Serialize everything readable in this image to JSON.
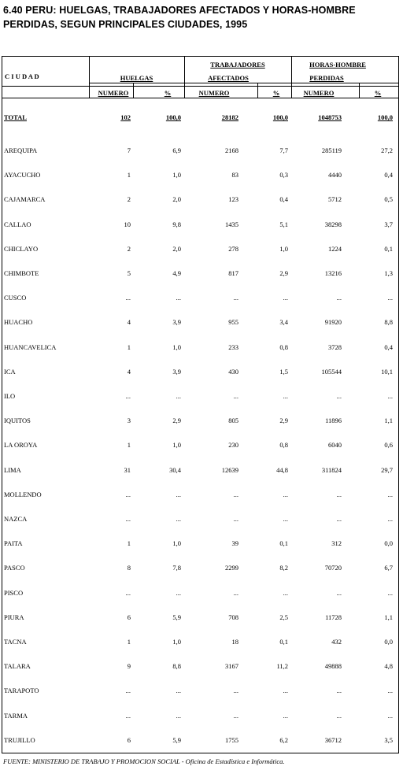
{
  "title": {
    "line1": "6.40  PERU: HUELGAS, TRABAJADORES AFECTADOS Y HORAS-HOMBRE",
    "line2": " PERDIDAS, SEGUN PRINCIPALES CIUDADES, 1995"
  },
  "header": {
    "ciudad": "C I U D A D",
    "huelgas": "HUELGAS",
    "trab1": "TRABAJADORES",
    "trab2": "AFECTADOS",
    "horas1": "HORAS-HOMBRE",
    "horas2": "PERDIDAS",
    "numero": "NUMERO",
    "pct": "%"
  },
  "total": {
    "city": "TOTAL",
    "h": "102",
    "hp": "100,0",
    "t": "28182",
    "tp": "100,0",
    "hh": "1048753",
    "hhp": "100,0"
  },
  "rows": [
    {
      "city": "AREQUIPA",
      "h": "7",
      "hp": "6,9",
      "t": "2168",
      "tp": "7,7",
      "hh": "285119",
      "hhp": "27,2"
    },
    {
      "city": "AYACUCHO",
      "h": "1",
      "hp": "1,0",
      "t": "83",
      "tp": "0,3",
      "hh": "4440",
      "hhp": "0,4"
    },
    {
      "city": "CAJAMARCA",
      "h": "2",
      "hp": "2,0",
      "t": "123",
      "tp": "0,4",
      "hh": "5712",
      "hhp": "0,5"
    },
    {
      "city": "CALLAO",
      "h": "10",
      "hp": "9,8",
      "t": "1435",
      "tp": "5,1",
      "hh": "38298",
      "hhp": "3,7"
    },
    {
      "city": "CHICLAYO",
      "h": "2",
      "hp": "2,0",
      "t": "278",
      "tp": "1,0",
      "hh": "1224",
      "hhp": "0,1"
    },
    {
      "city": "CHIMBOTE",
      "h": "5",
      "hp": "4,9",
      "t": "817",
      "tp": "2,9",
      "hh": "13216",
      "hhp": "1,3"
    },
    {
      "city": "CUSCO",
      "h": "...",
      "hp": "...",
      "t": "...",
      "tp": "...",
      "hh": "...",
      "hhp": "..."
    },
    {
      "city": "HUACHO",
      "h": "4",
      "hp": "3,9",
      "t": "955",
      "tp": "3,4",
      "hh": "91920",
      "hhp": "8,8"
    },
    {
      "city": "HUANCAVELICA",
      "h": "1",
      "hp": "1,0",
      "t": "233",
      "tp": "0,8",
      "hh": "3728",
      "hhp": "0,4"
    },
    {
      "city": "ICA",
      "h": "4",
      "hp": "3,9",
      "t": "430",
      "tp": "1,5",
      "hh": "105544",
      "hhp": "10,1"
    },
    {
      "city": "ILO",
      "h": "...",
      "hp": "...",
      "t": "...",
      "tp": "...",
      "hh": "...",
      "hhp": "..."
    },
    {
      "city": "IQUITOS",
      "h": "3",
      "hp": "2,9",
      "t": "805",
      "tp": "2,9",
      "hh": "11896",
      "hhp": "1,1"
    },
    {
      "city": "LA OROYA",
      "h": "1",
      "hp": "1,0",
      "t": "230",
      "tp": "0,8",
      "hh": "6040",
      "hhp": "0,6"
    },
    {
      "city": "LIMA",
      "h": "31",
      "hp": "30,4",
      "t": "12639",
      "tp": "44,8",
      "hh": "311824",
      "hhp": "29,7"
    },
    {
      "city": "MOLLENDO",
      "h": "...",
      "hp": "...",
      "t": "...",
      "tp": "...",
      "hh": "...",
      "hhp": "..."
    },
    {
      "city": "NAZCA",
      "h": "...",
      "hp": "...",
      "t": "...",
      "tp": "...",
      "hh": "...",
      "hhp": "..."
    },
    {
      "city": "PAITA",
      "h": "1",
      "hp": "1,0",
      "t": "39",
      "tp": "0,1",
      "hh": "312",
      "hhp": "0,0"
    },
    {
      "city": "PASCO",
      "h": "8",
      "hp": "7,8",
      "t": "2299",
      "tp": "8,2",
      "hh": "70720",
      "hhp": "6,7"
    },
    {
      "city": "PISCO",
      "h": "...",
      "hp": "...",
      "t": "...",
      "tp": "...",
      "hh": "...",
      "hhp": "..."
    },
    {
      "city": "PIURA",
      "h": "6",
      "hp": "5,9",
      "t": "708",
      "tp": "2,5",
      "hh": "11728",
      "hhp": "1,1"
    },
    {
      "city": "TACNA",
      "h": "1",
      "hp": "1,0",
      "t": "18",
      "tp": "0,1",
      "hh": "432",
      "hhp": "0,0"
    },
    {
      "city": "TALARA",
      "h": "9",
      "hp": "8,8",
      "t": "3167",
      "tp": "11,2",
      "hh": "49888",
      "hhp": "4,8"
    },
    {
      "city": "TARAPOTO",
      "h": "...",
      "hp": "...",
      "t": "...",
      "tp": "...",
      "hh": "...",
      "hhp": "..."
    },
    {
      "city": "TARMA",
      "h": "...",
      "hp": "...",
      "t": "...",
      "tp": "...",
      "hh": "...",
      "hhp": "..."
    },
    {
      "city": "TRUJILLO",
      "h": "6",
      "hp": "5,9",
      "t": "1755",
      "tp": "6,2",
      "hh": "36712",
      "hhp": "3,5"
    }
  ],
  "source": "FUENTE: MINISTERIO DE TRABAJO Y PROMOCION SOCIAL - Oficina de Estadística e Informática."
}
